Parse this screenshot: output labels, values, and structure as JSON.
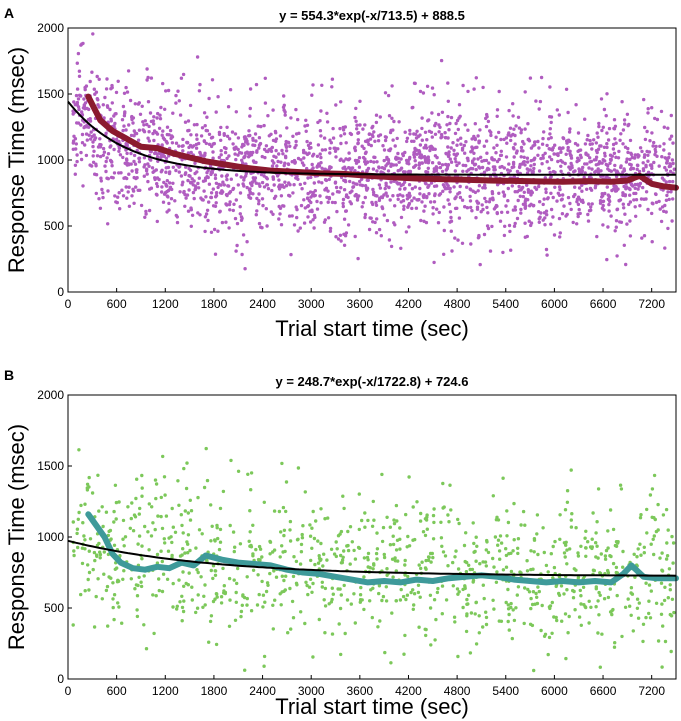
{
  "chart_data": [
    {
      "type": "scatter",
      "panel_label": "A",
      "title": "y = 554.3*exp(-x/713.5) + 888.5",
      "xlabel": "Trial start time (sec)",
      "ylabel": "Response Time (msec)",
      "xlim": [
        0,
        7500
      ],
      "ylim": [
        0,
        2000
      ],
      "xticks": [
        "0",
        "600",
        "1200",
        "1800",
        "2400",
        "3000",
        "3600",
        "4200",
        "4800",
        "5400",
        "6000",
        "6600",
        "7200"
      ],
      "yticks": [
        "0",
        "500",
        "1000",
        "1500",
        "2000"
      ],
      "point_color": "#b05cc0",
      "smooth_color": "#8b1a2e",
      "fit_color": "#000000",
      "fit": {
        "a": 554.3,
        "tau": 713.5,
        "c": 888.5
      },
      "n_points": 2600,
      "smooth_line": {
        "x": [
          250,
          400,
          550,
          700,
          900,
          1100,
          1300,
          1500,
          1700,
          1900,
          2200,
          2500,
          2800,
          3100,
          3400,
          3700,
          4000,
          4300,
          4600,
          4900,
          5200,
          5500,
          5800,
          6100,
          6400,
          6700,
          6900,
          7050,
          7200,
          7350,
          7500
        ],
        "y": [
          1480,
          1300,
          1220,
          1170,
          1100,
          1090,
          1050,
          1020,
          990,
          970,
          940,
          920,
          910,
          900,
          895,
          880,
          870,
          860,
          855,
          850,
          845,
          842,
          838,
          835,
          840,
          835,
          845,
          880,
          820,
          800,
          790
        ]
      }
    },
    {
      "type": "scatter",
      "panel_label": "B",
      "title": "y = 248.7*exp(-x/1722.8) + 724.6",
      "xlabel": "Trial start time (sec)",
      "ylabel": "Response Time (msec)",
      "xlim": [
        0,
        7500
      ],
      "ylim": [
        0,
        2000
      ],
      "xticks": [
        "0",
        "600",
        "1200",
        "1800",
        "2400",
        "3000",
        "3600",
        "4200",
        "4800",
        "5400",
        "6000",
        "6600",
        "7200"
      ],
      "yticks": [
        "0",
        "500",
        "1000",
        "1500",
        "2000"
      ],
      "point_color": "#7cc85a",
      "smooth_color": "#3e9a9a",
      "fit_color": "#000000",
      "fit": {
        "a": 248.7,
        "tau": 1722.8,
        "c": 724.6
      },
      "n_points": 1100,
      "smooth_line": {
        "x": [
          250,
          350,
          450,
          550,
          650,
          800,
          950,
          1100,
          1250,
          1400,
          1550,
          1700,
          1900,
          2100,
          2300,
          2500,
          2700,
          2900,
          3100,
          3300,
          3500,
          3700,
          3900,
          4100,
          4300,
          4500,
          4700,
          4900,
          5100,
          5300,
          5500,
          5700,
          5900,
          6100,
          6300,
          6500,
          6700,
          6850,
          6950,
          7100,
          7250,
          7500
        ],
        "y": [
          1160,
          1080,
          1000,
          880,
          820,
          780,
          770,
          790,
          780,
          820,
          800,
          870,
          840,
          820,
          810,
          800,
          770,
          750,
          740,
          720,
          700,
          680,
          690,
          680,
          700,
          690,
          710,
          720,
          730,
          720,
          700,
          690,
          680,
          690,
          680,
          690,
          680,
          740,
          800,
          720,
          710,
          710
        ]
      }
    }
  ]
}
